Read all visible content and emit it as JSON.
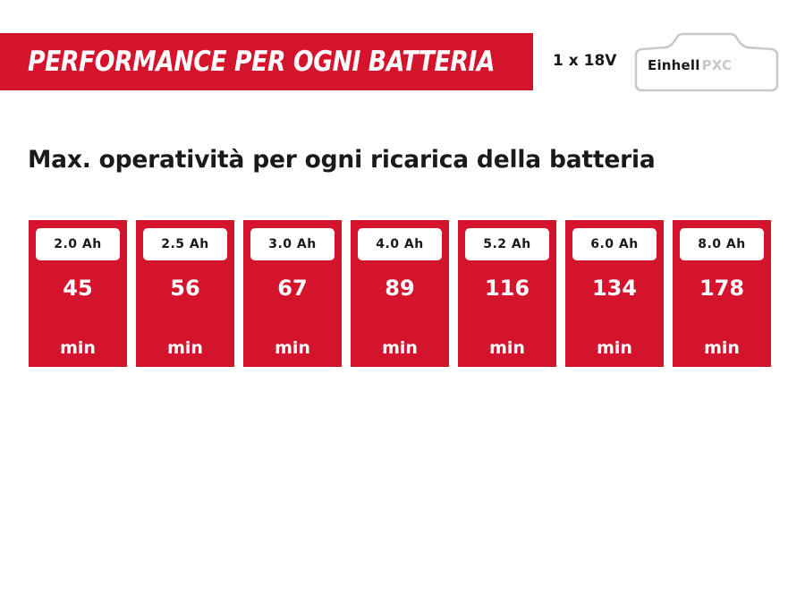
{
  "header": {
    "title": "PERFORMANCE PER OGNI BATTERIA",
    "voltage": "1 x 18V",
    "logo": {
      "brand": "Einhell",
      "suffix": "PXC",
      "icon": "battery-pack-icon"
    }
  },
  "subtitle": "Max. operatività per ogni ricarica della batteria",
  "batteries": [
    {
      "capacity": "2.0 Ah",
      "minutes": "45",
      "unit": "min"
    },
    {
      "capacity": "2.5 Ah",
      "minutes": "56",
      "unit": "min"
    },
    {
      "capacity": "3.0 Ah",
      "minutes": "67",
      "unit": "min"
    },
    {
      "capacity": "4.0 Ah",
      "minutes": "89",
      "unit": "min"
    },
    {
      "capacity": "5.2 Ah",
      "minutes": "116",
      "unit": "min"
    },
    {
      "capacity": "6.0 Ah",
      "minutes": "134",
      "unit": "min"
    },
    {
      "capacity": "8.0 Ah",
      "minutes": "178",
      "unit": "min"
    }
  ],
  "colors": {
    "accent": "#d4142c",
    "text": "#1a1a1a",
    "logo_outline": "#c8c8c8"
  }
}
